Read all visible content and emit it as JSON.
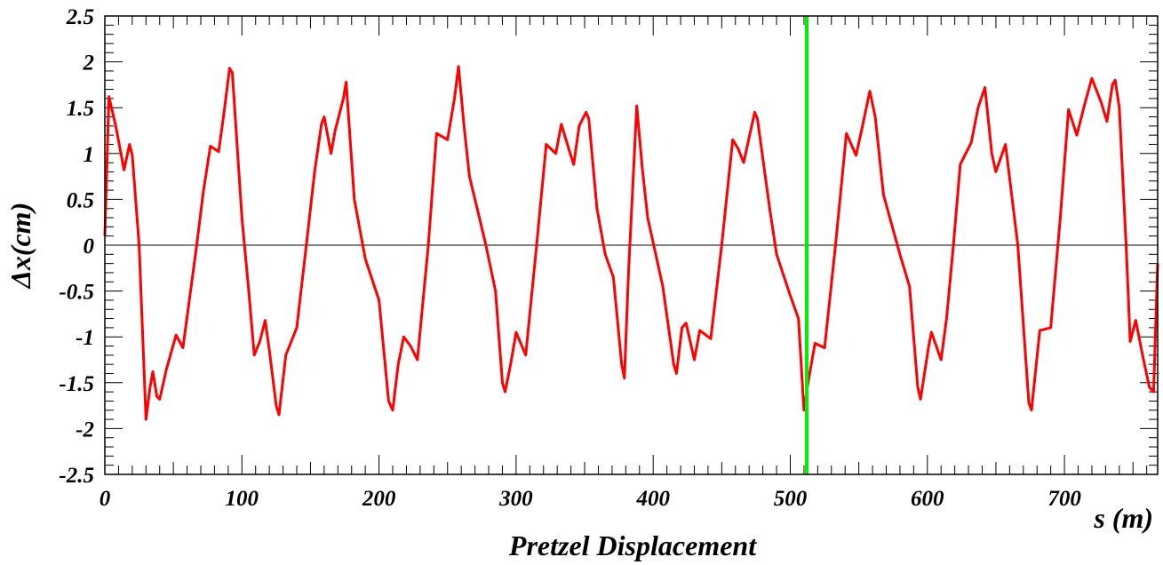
{
  "chart_data": {
    "type": "line",
    "title": "",
    "xlabel": "s (m)",
    "ylabel": "Δx(cm)",
    "caption": "Pretzel Displacement",
    "xlim": [
      0,
      768
    ],
    "ylim": [
      -2.5,
      2.5
    ],
    "x_ticks": [
      0,
      100,
      200,
      300,
      400,
      500,
      600,
      700
    ],
    "y_ticks": [
      -2.5,
      -2,
      -1.5,
      -1,
      -0.5,
      0,
      0.5,
      1,
      1.5,
      2,
      2.5
    ],
    "y_tick_labels": [
      "-2.5",
      "-2",
      "-1.5",
      "-1",
      "-0.5",
      "0",
      "0.5",
      "1",
      "1.5",
      "2",
      "2.5"
    ],
    "grid": false,
    "zero_line": 0,
    "marker_line_x": 512,
    "colors": {
      "series": "#ff0000",
      "marker": "#00ee00",
      "zero": "#000000"
    },
    "series": [
      {
        "values_xy": [
          [
            0,
            0.1
          ],
          [
            3,
            1.62
          ],
          [
            8,
            1.3
          ],
          [
            14,
            0.82
          ],
          [
            18,
            1.1
          ],
          [
            20,
            0.98
          ],
          [
            25,
            0.0
          ],
          [
            29,
            -1.5
          ],
          [
            30,
            -1.9
          ],
          [
            33,
            -1.55
          ],
          [
            35,
            -1.38
          ],
          [
            38,
            -1.65
          ],
          [
            40,
            -1.68
          ],
          [
            45,
            -1.35
          ],
          [
            52,
            -0.98
          ],
          [
            57,
            -1.12
          ],
          [
            67,
            0.0
          ],
          [
            72,
            0.6
          ],
          [
            77,
            1.08
          ],
          [
            83,
            1.02
          ],
          [
            87,
            1.45
          ],
          [
            91,
            1.93
          ],
          [
            93,
            1.88
          ],
          [
            100,
            0.3
          ],
          [
            105,
            -0.5
          ],
          [
            109,
            -1.2
          ],
          [
            113,
            -1.05
          ],
          [
            117,
            -0.82
          ],
          [
            120,
            -1.15
          ],
          [
            125,
            -1.75
          ],
          [
            127,
            -1.85
          ],
          [
            132,
            -1.2
          ],
          [
            140,
            -0.9
          ],
          [
            147,
            0.0
          ],
          [
            153,
            0.8
          ],
          [
            158,
            1.32
          ],
          [
            160,
            1.4
          ],
          [
            165,
            1.0
          ],
          [
            168,
            1.25
          ],
          [
            174,
            1.6
          ],
          [
            176,
            1.78
          ],
          [
            182,
            0.5
          ],
          [
            190,
            -0.15
          ],
          [
            200,
            -0.6
          ],
          [
            207,
            -1.7
          ],
          [
            210,
            -1.8
          ],
          [
            214,
            -1.3
          ],
          [
            218,
            -1.0
          ],
          [
            223,
            -1.1
          ],
          [
            228,
            -1.25
          ],
          [
            236,
            0.0
          ],
          [
            242,
            1.22
          ],
          [
            250,
            1.15
          ],
          [
            255,
            1.6
          ],
          [
            258,
            1.95
          ],
          [
            262,
            1.3
          ],
          [
            266,
            0.75
          ],
          [
            274,
            0.25
          ],
          [
            278,
            0.0
          ],
          [
            285,
            -0.5
          ],
          [
            290,
            -1.5
          ],
          [
            292,
            -1.6
          ],
          [
            296,
            -1.3
          ],
          [
            300,
            -0.95
          ],
          [
            307,
            -1.2
          ],
          [
            315,
            0.0
          ],
          [
            322,
            1.1
          ],
          [
            329,
            1.0
          ],
          [
            333,
            1.32
          ],
          [
            339,
            1.02
          ],
          [
            342,
            0.88
          ],
          [
            346,
            1.3
          ],
          [
            351,
            1.45
          ],
          [
            353,
            1.38
          ],
          [
            359,
            0.4
          ],
          [
            365,
            -0.1
          ],
          [
            371,
            -0.35
          ],
          [
            377,
            -1.3
          ],
          [
            379,
            -1.45
          ],
          [
            382,
            -0.3
          ],
          [
            388,
            1.52
          ],
          [
            392,
            0.85
          ],
          [
            396,
            0.3
          ],
          [
            407,
            -0.45
          ],
          [
            415,
            -1.3
          ],
          [
            417,
            -1.4
          ],
          [
            421,
            -0.9
          ],
          [
            424,
            -0.85
          ],
          [
            430,
            -1.25
          ],
          [
            434,
            -0.93
          ],
          [
            442,
            -1.02
          ],
          [
            450,
            0.0
          ],
          [
            458,
            1.15
          ],
          [
            462,
            1.05
          ],
          [
            466,
            0.9
          ],
          [
            474,
            1.45
          ],
          [
            476,
            1.38
          ],
          [
            485,
            0.4
          ],
          [
            490,
            -0.1
          ],
          [
            500,
            -0.55
          ],
          [
            506,
            -0.8
          ],
          [
            510,
            -1.8
          ],
          [
            513,
            -1.5
          ],
          [
            518,
            -1.07
          ],
          [
            525,
            -1.12
          ],
          [
            533,
            0.0
          ],
          [
            541,
            1.22
          ],
          [
            548,
            0.98
          ],
          [
            552,
            1.25
          ],
          [
            558,
            1.68
          ],
          [
            562,
            1.4
          ],
          [
            568,
            0.55
          ],
          [
            580,
            -0.1
          ],
          [
            587,
            -0.45
          ],
          [
            593,
            -1.55
          ],
          [
            595,
            -1.68
          ],
          [
            601,
            -1.1
          ],
          [
            603,
            -0.95
          ],
          [
            610,
            -1.25
          ],
          [
            614,
            -0.8
          ],
          [
            619,
            0.0
          ],
          [
            624,
            0.88
          ],
          [
            632,
            1.12
          ],
          [
            637,
            1.5
          ],
          [
            642,
            1.72
          ],
          [
            647,
            1.0
          ],
          [
            650,
            0.8
          ],
          [
            657,
            1.1
          ],
          [
            666,
            0.0
          ],
          [
            674,
            -1.72
          ],
          [
            676,
            -1.8
          ],
          [
            682,
            -0.93
          ],
          [
            690,
            -0.9
          ],
          [
            697,
            0.3
          ],
          [
            703,
            1.48
          ],
          [
            709,
            1.2
          ],
          [
            715,
            1.55
          ],
          [
            720,
            1.82
          ],
          [
            727,
            1.55
          ],
          [
            731,
            1.35
          ],
          [
            735,
            1.75
          ],
          [
            737,
            1.8
          ],
          [
            740,
            1.5
          ],
          [
            745,
            0.0
          ],
          [
            748,
            -1.05
          ],
          [
            752,
            -0.82
          ],
          [
            757,
            -1.2
          ],
          [
            762,
            -1.55
          ],
          [
            765,
            -1.6
          ],
          [
            768,
            -0.2
          ]
        ]
      }
    ]
  }
}
